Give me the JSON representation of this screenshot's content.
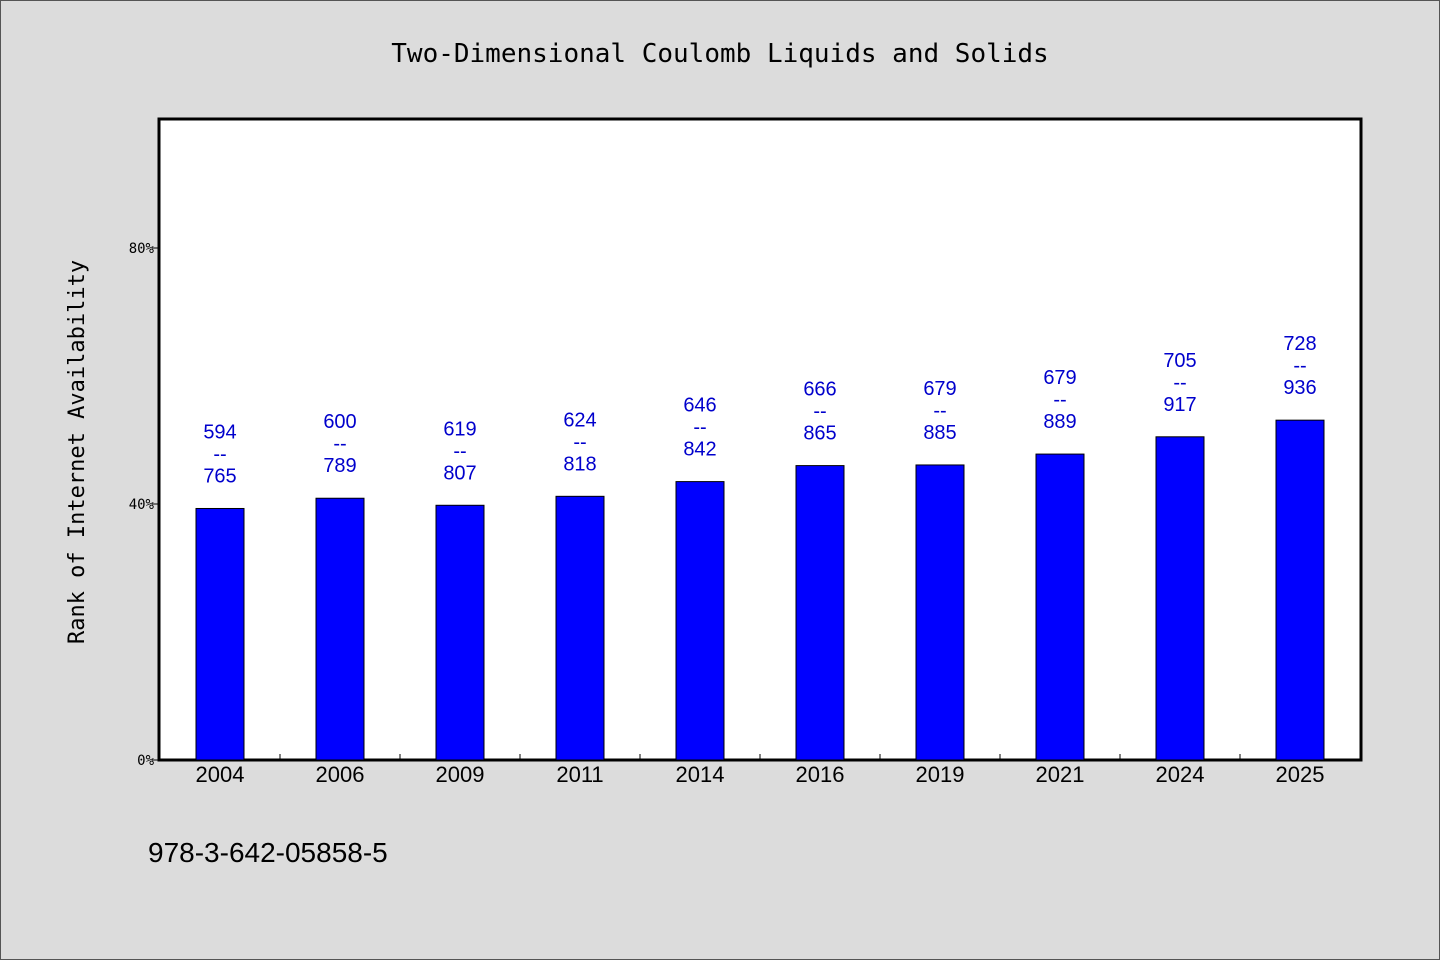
{
  "chart_data": {
    "type": "bar",
    "title": "Two-Dimensional Coulomb Liquids and Solids",
    "xlabel": "",
    "ylabel": "Rank of Internet Availability",
    "categories": [
      "2004",
      "2006",
      "2009",
      "2011",
      "2014",
      "2016",
      "2019",
      "2021",
      "2024",
      "2025"
    ],
    "values": [
      39.3,
      40.9,
      39.8,
      41.2,
      43.5,
      46.0,
      46.1,
      47.8,
      50.5,
      53.1
    ],
    "range_labels": [
      {
        "low": "594",
        "sep": "--",
        "high": "765"
      },
      {
        "low": "600",
        "sep": "--",
        "high": "789"
      },
      {
        "low": "619",
        "sep": "--",
        "high": "807"
      },
      {
        "low": "624",
        "sep": "--",
        "high": "818"
      },
      {
        "low": "646",
        "sep": "--",
        "high": "842"
      },
      {
        "low": "666",
        "sep": "--",
        "high": "865"
      },
      {
        "low": "679",
        "sep": "--",
        "high": "885"
      },
      {
        "low": "679",
        "sep": "--",
        "high": "889"
      },
      {
        "low": "705",
        "sep": "--",
        "high": "917"
      },
      {
        "low": "728",
        "sep": "--",
        "high": "936"
      }
    ],
    "ylim": [
      0,
      100
    ],
    "yticks": [
      0,
      40,
      80
    ],
    "ytick_labels": [
      "0%",
      "40%",
      "80%"
    ],
    "grid": false,
    "legend": "none",
    "colors": {
      "bar": "#0000ff",
      "bar_edge": "#000000",
      "data_label": "#0000cc",
      "plot_background": "#ffffff",
      "page_background": "#dcdcdc"
    }
  },
  "footer": {
    "isbn": "978-3-642-05858-5"
  }
}
